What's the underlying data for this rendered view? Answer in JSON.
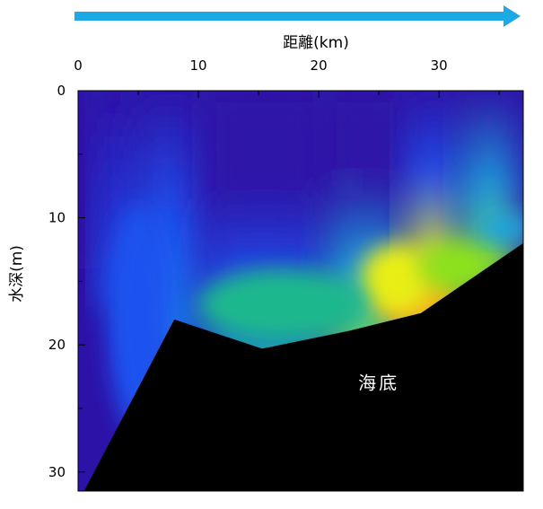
{
  "chart_data": {
    "type": "heatmap",
    "title": "",
    "direction_arrow": {
      "color": "#1da8e6"
    },
    "xaxis": {
      "label": "距離(km)",
      "position": "top",
      "range": [
        0,
        37
      ],
      "ticks": [
        0,
        10,
        20,
        30
      ],
      "minor_ticks": [
        5,
        15,
        25,
        35
      ]
    },
    "yaxis": {
      "label": "水深(m)",
      "range": [
        0,
        31.5
      ],
      "inverted": true,
      "ticks": [
        0,
        10,
        20,
        30
      ],
      "minor_ticks": [
        5,
        15,
        25
      ]
    },
    "annotations": [
      {
        "text": "海底",
        "x": 25,
        "y": 23
      }
    ],
    "seabed": {
      "color": "#000000",
      "profile": [
        [
          0.5,
          31.5
        ],
        [
          8,
          18
        ],
        [
          15.3,
          20.3
        ],
        [
          22.5,
          18.9
        ],
        [
          28.5,
          17.5
        ],
        [
          37,
          12
        ]
      ]
    },
    "color_scale": [
      "#2d12a8",
      "#1e53f0",
      "#1aa5e0",
      "#1fb88c",
      "#8ce21c",
      "#e8ee14",
      "#f3ac1a"
    ],
    "field": [
      {
        "x": 0,
        "y0": 0,
        "y1": 11,
        "stops": [
          "#2d12a8",
          "#2d12a8"
        ]
      },
      {
        "x": 3,
        "y0": 0,
        "y1": 14,
        "stops": [
          "#2d12a8",
          "#2333d8",
          "#1e53f0"
        ]
      },
      {
        "x": 6,
        "y0": 0,
        "y1": 18,
        "stops": [
          "#2d12a8",
          "#1e53f0",
          "#1a7fe6"
        ]
      },
      {
        "x": 15,
        "y0": 0,
        "y1": 20.3,
        "stops": [
          "#2d12a8",
          "#2d12a8",
          "#1e53f0",
          "#1fb88c"
        ]
      },
      {
        "x": 26,
        "y0": 0,
        "y1": 18.5,
        "stops": [
          "#2d12a8",
          "#2d12a8",
          "#1aa5e0",
          "#8ce21c"
        ]
      },
      {
        "x": 28.5,
        "y0": 0,
        "y1": 17.5,
        "stops": [
          "#2d12a8",
          "#1e53f0",
          "#e8ee14",
          "#f3ac1a"
        ]
      },
      {
        "x": 35,
        "y0": 0,
        "y1": 12.5,
        "stops": [
          "#2d12a8",
          "#1aa5e0",
          "#8ce21c"
        ]
      }
    ]
  }
}
